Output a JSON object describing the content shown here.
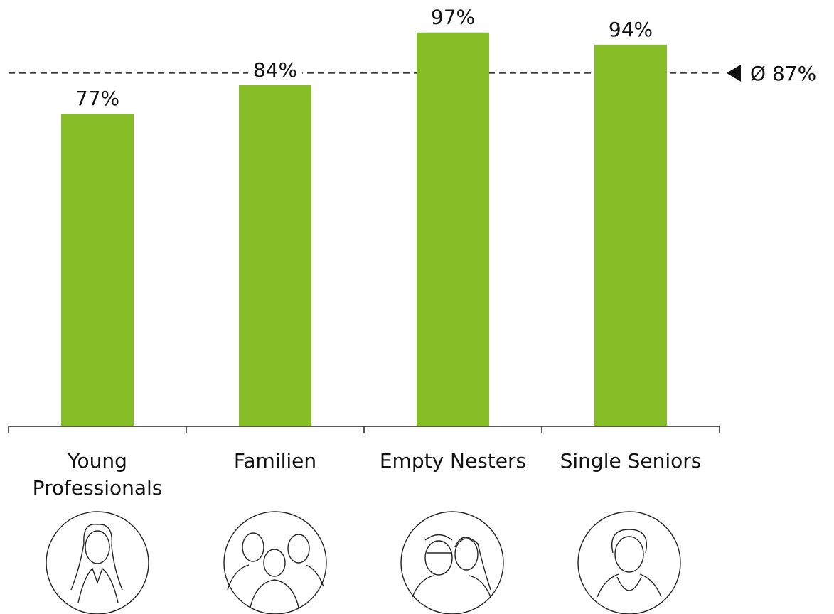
{
  "chart_data": {
    "type": "bar",
    "categories": [
      "Young Professionals",
      "Familien",
      "Empty Nesters",
      "Single Seniors"
    ],
    "values": [
      77,
      84,
      97,
      94
    ],
    "value_labels": [
      "77%",
      "84%",
      "97%",
      "94%"
    ],
    "color": "#86bc25",
    "ylim": [
      0,
      105
    ],
    "reference_line": {
      "value": 87,
      "label": "Ø 87%"
    }
  }
}
